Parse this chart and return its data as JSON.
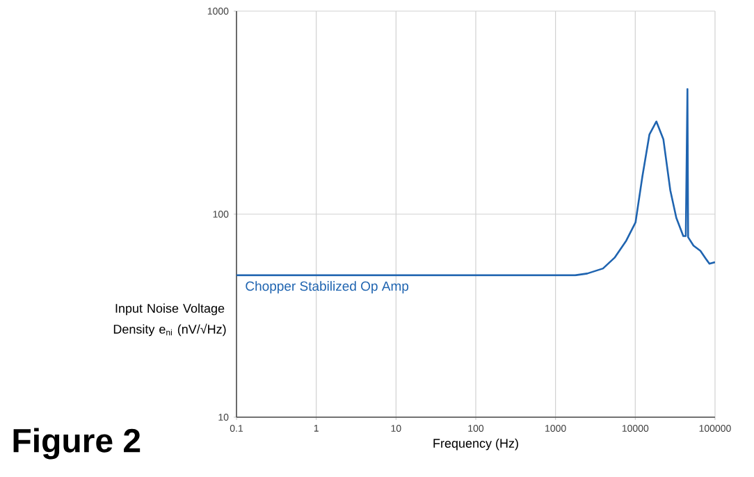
{
  "chart_data": {
    "type": "line",
    "xlabel": "Frequency (Hz)",
    "ylabel": "Input Noise Voltage Density e$_{ni}$ (nV/√Hz)",
    "annotations": [
      "Figure 2"
    ],
    "log": "xy",
    "grid": true,
    "marker": "none",
    "xlim": [
      0.1,
      100000
    ],
    "ylim": [
      10,
      1000
    ],
    "xticks": [
      0.1,
      1,
      10,
      100,
      1000,
      10000,
      100000
    ],
    "yticks": [
      10,
      100,
      1000
    ],
    "series": [
      {
        "name": "Chopper Stabilized Op Amp",
        "color": "#1f64b0",
        "x": [
          0.1,
          1,
          10,
          100,
          1000,
          1760,
          2500,
          3940,
          5500,
          7700,
          10070,
          12300,
          15060,
          18400,
          22500,
          27500,
          32700,
          40000,
          43000,
          45100,
          46000,
          53700,
          65600,
          75200,
          85000,
          100000
        ],
        "values": [
          50,
          50,
          50,
          50,
          50,
          50,
          51,
          54,
          61,
          74,
          91,
          154,
          247,
          286,
          234,
          131,
          96,
          78,
          78,
          413,
          77,
          70,
          66,
          61,
          57,
          58
        ]
      }
    ]
  }
}
